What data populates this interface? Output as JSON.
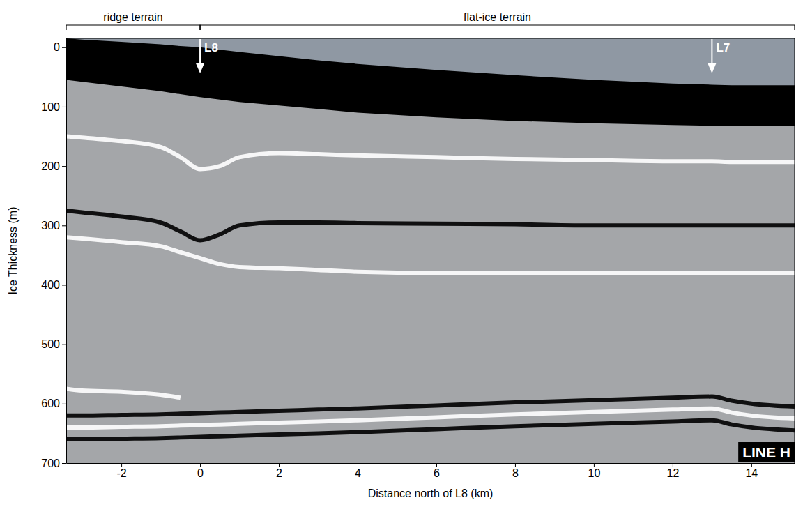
{
  "chart_data": {
    "type": "line",
    "x_label": "Distance north of L8 (km)",
    "y_label": "Ice Thickness (m)",
    "x": [
      -3.4,
      -3,
      -2,
      -1,
      -0.5,
      0,
      0.5,
      1,
      2,
      3,
      4,
      6,
      8,
      10,
      12,
      13,
      13.5,
      14,
      15.1
    ],
    "xlim": [
      -3.4,
      15.1
    ],
    "xticks": [
      -2,
      0,
      2,
      4,
      6,
      8,
      10,
      12,
      14
    ],
    "ylim": [
      -15,
      700
    ],
    "yticks": [
      0,
      100,
      200,
      300,
      400,
      500,
      600,
      700
    ],
    "series": [
      {
        "type": "area",
        "color": "#000000",
        "values": [
          55,
          58,
          66,
          74,
          79,
          84,
          88,
          92,
          98,
          104,
          110,
          118,
          124,
          128,
          131,
          132,
          132,
          133,
          133
        ]
      },
      {
        "type": "area",
        "color": "#8f98a3",
        "values": [
          -15,
          -13,
          -9,
          -5,
          -2,
          0,
          4,
          8,
          15,
          22,
          28,
          38,
          47,
          55,
          61,
          63,
          64,
          64,
          64
        ]
      },
      {
        "type": "line",
        "color": "#ffffff",
        "values": [
          150,
          152,
          158,
          168,
          185,
          205,
          200,
          185,
          178,
          180,
          182,
          185,
          188,
          190,
          192,
          192,
          193,
          193,
          193
        ]
      },
      {
        "type": "line",
        "color": "#000000",
        "values": [
          275,
          278,
          285,
          295,
          310,
          325,
          315,
          300,
          295,
          295,
          296,
          297,
          298,
          300,
          300,
          300,
          300,
          300,
          300
        ]
      },
      {
        "type": "line",
        "color": "#ffffff",
        "values": [
          320,
          322,
          328,
          335,
          345,
          355,
          365,
          370,
          372,
          375,
          378,
          380,
          380,
          380,
          380,
          380,
          380,
          380,
          380
        ]
      },
      {
        "type": "line",
        "color": "#ffffff",
        "values": [
          575,
          578,
          580,
          585,
          590,
          null,
          null,
          null,
          null,
          null,
          null,
          null,
          null,
          null,
          null,
          null,
          null,
          null,
          null
        ]
      },
      {
        "type": "line",
        "color": "#000000",
        "values": [
          620,
          620,
          619,
          618,
          617,
          616,
          615,
          614,
          612,
          610,
          608,
          603,
          598,
          594,
          590,
          588,
          595,
          600,
          605
        ]
      },
      {
        "type": "line",
        "color": "#ffffff",
        "values": [
          640,
          640,
          639,
          638,
          637,
          636,
          635,
          634,
          632,
          630,
          628,
          623,
          618,
          614,
          610,
          608,
          615,
          620,
          625
        ]
      },
      {
        "type": "line",
        "color": "#000000",
        "values": [
          660,
          660,
          659,
          658,
          657,
          656,
          655,
          654,
          652,
          650,
          648,
          643,
          638,
          634,
          630,
          628,
          635,
          640,
          645
        ]
      }
    ],
    "annotations": [
      {
        "text": "ridge terrain",
        "x": [
          -3.4,
          0
        ]
      },
      {
        "text": "flat-ice terrain",
        "x": [
          0,
          15.1
        ]
      },
      {
        "text": "L8",
        "x": 0
      },
      {
        "text": "L7",
        "x": 13
      },
      {
        "text": "LINE H"
      }
    ]
  }
}
